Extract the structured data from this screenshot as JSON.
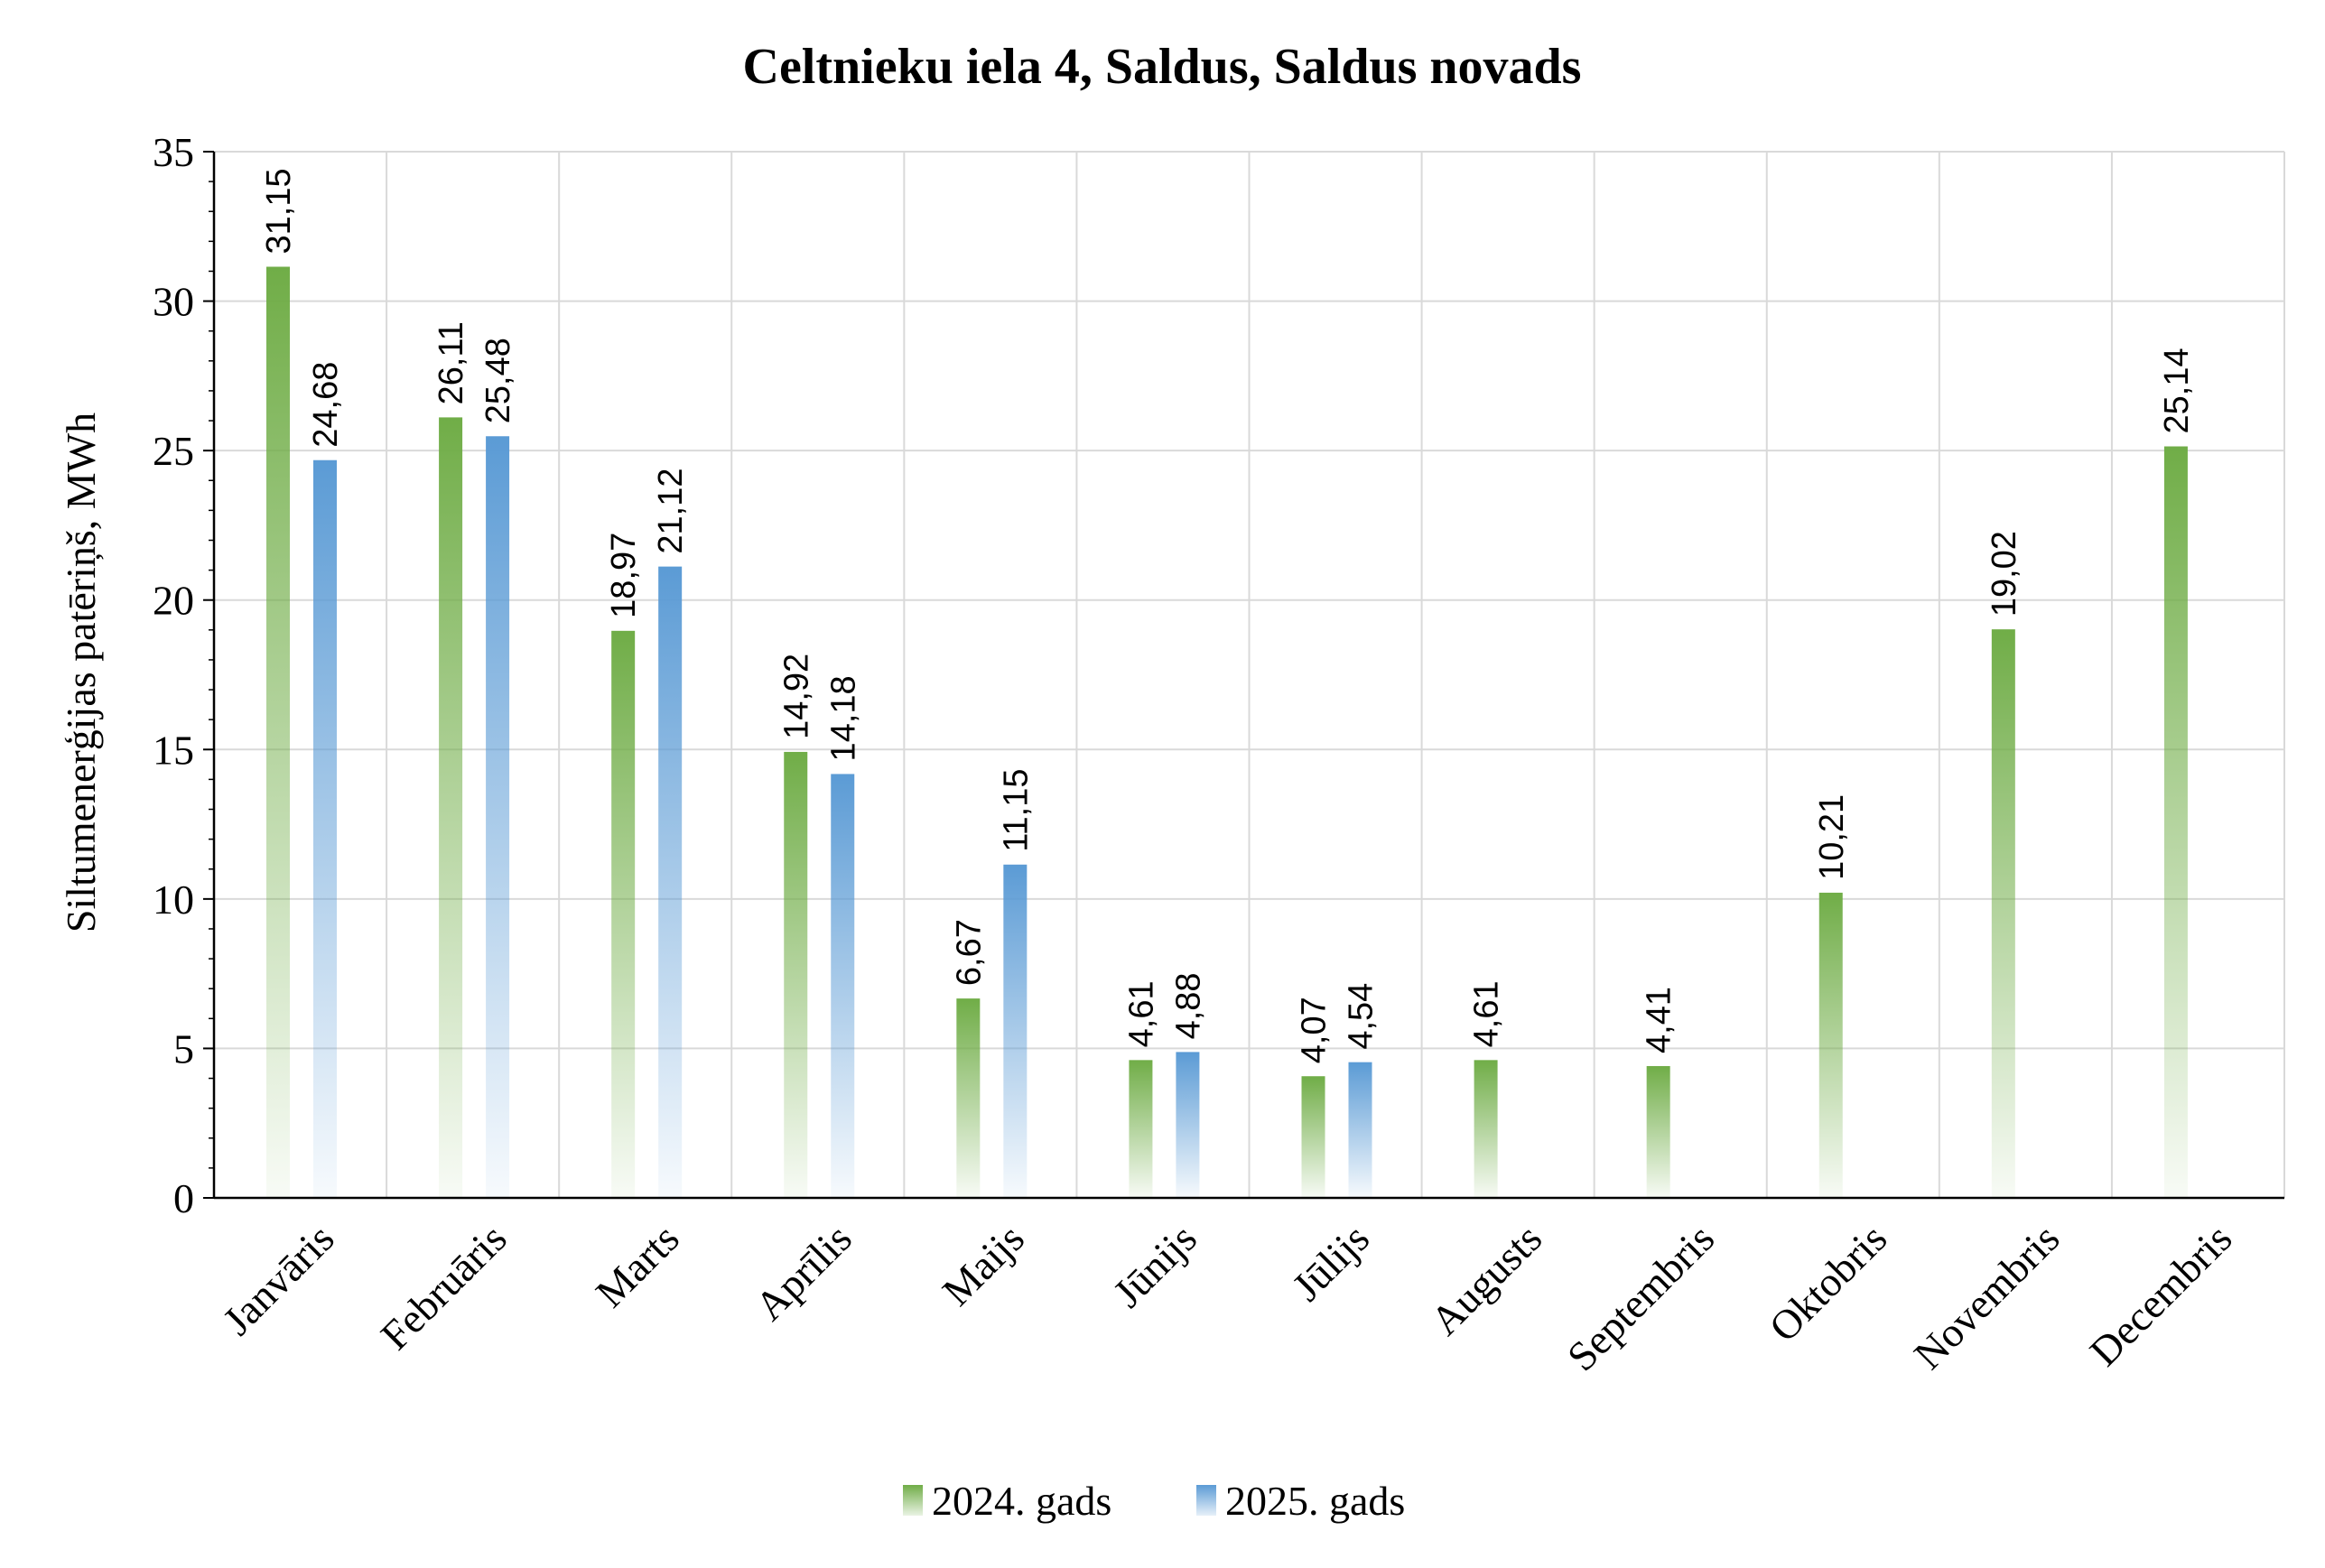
{
  "chart_data": {
    "type": "bar",
    "title": "Celtnieku iela 4, Saldus, Saldus novads",
    "xlabel": "",
    "ylabel": "Siltumenerģijas patēriņš, MWh",
    "ylim": [
      0,
      35
    ],
    "yticks": [
      0,
      5,
      10,
      15,
      20,
      25,
      30,
      35
    ],
    "ytick_labels": [
      "0",
      "5",
      "10",
      "15",
      "20",
      "25",
      "30",
      "35"
    ],
    "grid": true,
    "legend_position": "bottom",
    "categories": [
      "Janvāris",
      "Februāris",
      "Marts",
      "Aprīlis",
      "Maijs",
      "Jūnijs",
      "Jūlijs",
      "Augusts",
      "Septembris",
      "Oktobris",
      "Novembris",
      "Decembris"
    ],
    "series": [
      {
        "name": "2024. gads",
        "color": "#70ad47",
        "values": [
          31.15,
          26.11,
          18.97,
          14.92,
          6.67,
          4.61,
          4.07,
          4.61,
          4.41,
          10.21,
          19.02,
          25.14
        ],
        "labels": [
          "31,15",
          "26,11",
          "18,97",
          "14,92",
          "6,67",
          "4,61",
          "4,07",
          "4,61",
          "4,41",
          "10,21",
          "19,02",
          "25,14"
        ]
      },
      {
        "name": "2025. gads",
        "color": "#5b9bd5",
        "values": [
          24.68,
          25.48,
          21.12,
          14.18,
          11.15,
          4.88,
          4.54,
          null,
          null,
          null,
          null,
          null
        ],
        "labels": [
          "24,68",
          "25,48",
          "21,12",
          "14,18",
          "11,15",
          "4,88",
          "4,54",
          null,
          null,
          null,
          null,
          null
        ]
      }
    ]
  }
}
